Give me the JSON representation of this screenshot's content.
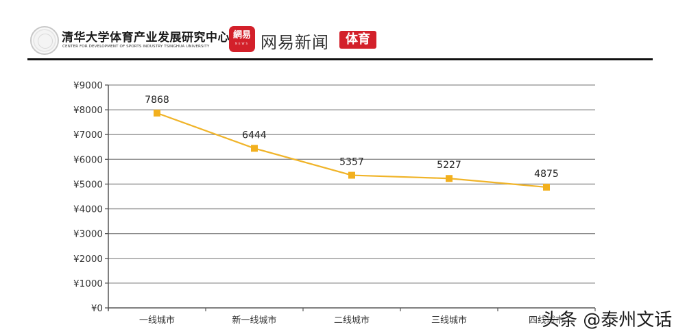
{
  "header": {
    "tsinghua_title": "清华大学体育产业发展研究中心",
    "tsinghua_subtitle": "CENTER FOR DEVELOPMENT OF SPORTS INDUSTRY TSINGHUA UNIVERSITY",
    "netease_logo_main": "網易",
    "netease_logo_sub": "NEWS",
    "netease_title": "网易新闻",
    "sports_badge": "体育"
  },
  "watermark": "头条 @泰州文话",
  "colors": {
    "line": "#f0b429",
    "marker": "#f2b01e",
    "grid": "#8c8c8c",
    "axis": "#555555",
    "brand_red": "#d3202a"
  },
  "chart_data": {
    "type": "line",
    "title": "",
    "xlabel": "",
    "ylabel": "",
    "categories": [
      "一线城市",
      "新一线城市",
      "二线城市",
      "三线城市",
      "四线城市"
    ],
    "series": [
      {
        "name": "",
        "values": [
          7868,
          6444,
          5357,
          5227,
          4875
        ]
      }
    ],
    "data_labels": [
      "7868",
      "6444",
      "5357",
      "5227",
      "4875"
    ],
    "yticks": [
      "¥0",
      "¥1000",
      "¥2000",
      "¥3000",
      "¥4000",
      "¥5000",
      "¥6000",
      "¥7000",
      "¥8000",
      "¥9000"
    ],
    "ylim": [
      0,
      9000
    ],
    "grid": true,
    "legend": "none"
  }
}
